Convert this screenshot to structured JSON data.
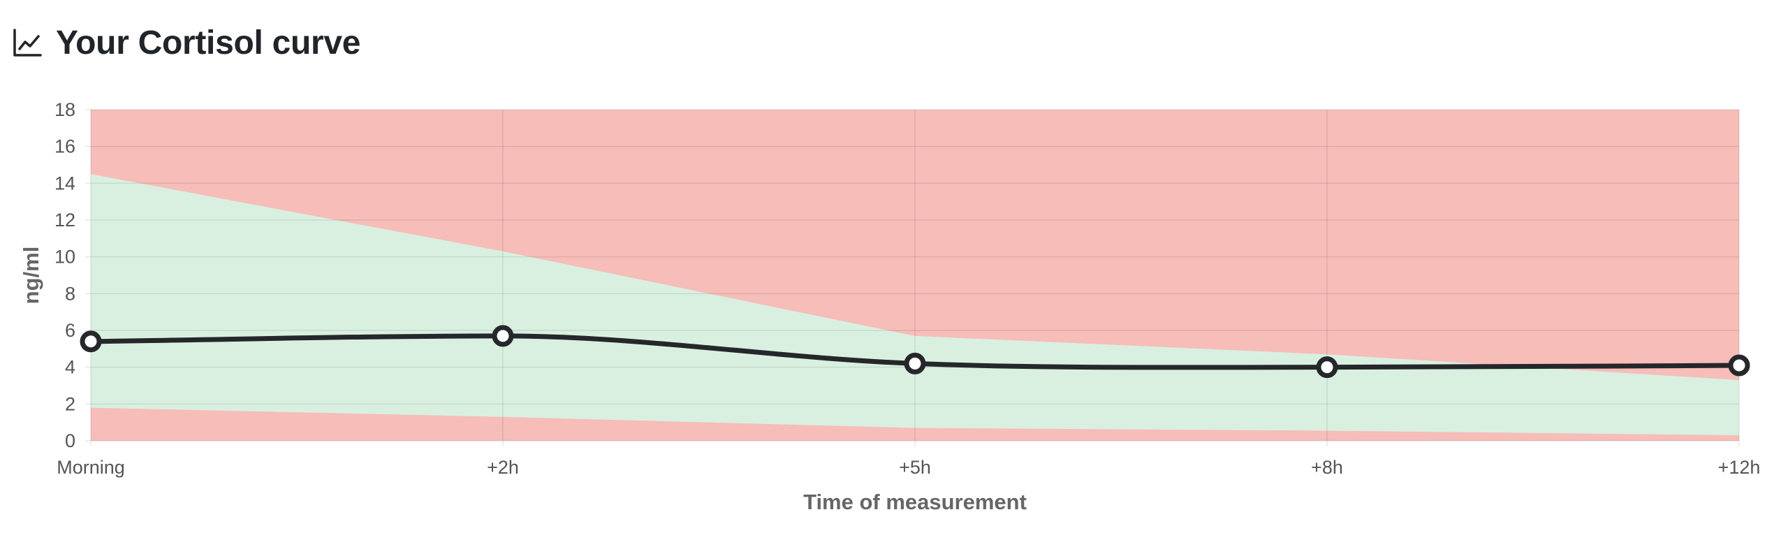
{
  "header": {
    "title": "Your Cortisol curve",
    "icon": "line-chart-icon"
  },
  "chart_data": {
    "type": "line",
    "title": "Your Cortisol curve",
    "xlabel": "Time of measurement",
    "ylabel": "ng/ml",
    "categories": [
      "Morning",
      "+2h",
      "+5h",
      "+8h",
      "+12h"
    ],
    "ylim": [
      0,
      18
    ],
    "yticks": [
      0,
      2,
      4,
      6,
      8,
      10,
      12,
      14,
      16,
      18
    ],
    "grid": true,
    "legend": "none",
    "series": [
      {
        "values": [
          5.4,
          5.7,
          4.2,
          4.0,
          4.1
        ],
        "color": "#25272a"
      }
    ],
    "reference_range": {
      "lower": [
        1.8,
        1.3,
        0.7,
        0.55,
        0.3
      ],
      "upper": [
        14.5,
        10.3,
        5.7,
        4.7,
        3.3
      ],
      "normal_color": "#d9f0e1",
      "out_of_range_color": "#f6bdb9"
    }
  }
}
